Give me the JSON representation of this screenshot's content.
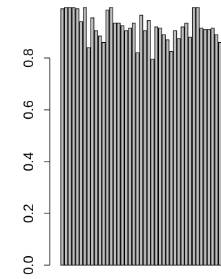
{
  "chart_data": {
    "type": "bar",
    "title": "",
    "xlabel": "",
    "ylabel": "",
    "ylim": [
      0,
      1
    ],
    "yticks": [
      0.0,
      0.2,
      0.4,
      0.6,
      0.8
    ],
    "ytick_labels": [
      "0.0",
      "0.2",
      "0.4",
      "0.6",
      "0.8"
    ],
    "bar_color": "#bebebe",
    "edge_color": "#000000",
    "values": [
      0.99,
      0.995,
      0.995,
      0.995,
      0.99,
      0.94,
      0.995,
      0.84,
      0.955,
      0.905,
      0.885,
      0.86,
      0.985,
      0.995,
      0.935,
      0.935,
      0.925,
      0.905,
      0.915,
      0.935,
      0.82,
      0.965,
      0.905,
      0.945,
      0.795,
      0.92,
      0.915,
      0.89,
      0.87,
      0.825,
      0.905,
      0.875,
      0.92,
      0.935,
      0.88,
      0.995,
      0.995,
      0.915,
      0.91,
      0.91,
      0.915,
      0.89,
      0.86
    ]
  }
}
